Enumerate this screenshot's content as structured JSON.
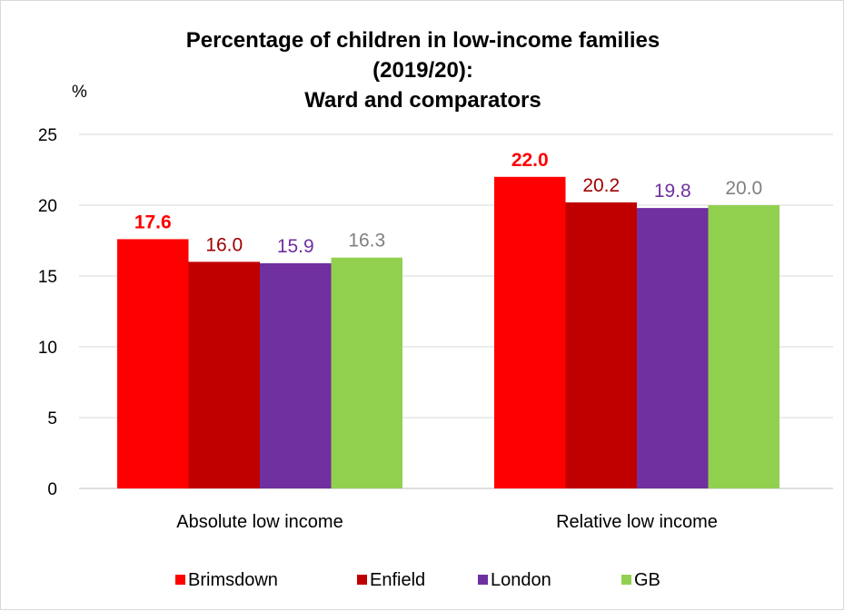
{
  "chart_data": {
    "type": "bar",
    "title_lines": [
      "Percentage of children in low-income families",
      "(2019/20):",
      "Ward and comparators"
    ],
    "ylabel": "%",
    "ylim": [
      0,
      25
    ],
    "yticks": [
      "0",
      "5",
      "10",
      "15",
      "20",
      "25"
    ],
    "grid": true,
    "legend_position": "bottom",
    "categories": [
      "Absolute low income",
      "Relative low income"
    ],
    "series": [
      {
        "name": "Brimsdown",
        "color": "#ff0000",
        "label_color": "#ff0000",
        "label_bold": true,
        "values": [
          17.6,
          22.0
        ],
        "labels": [
          "17.6",
          "22.0"
        ]
      },
      {
        "name": "Enfield",
        "color": "#c00000",
        "label_color": "#a00000",
        "label_bold": false,
        "values": [
          16.0,
          20.2
        ],
        "labels": [
          "16.0",
          "20.2"
        ]
      },
      {
        "name": "London",
        "color": "#7030a0",
        "label_color": "#7030a0",
        "label_bold": false,
        "values": [
          15.9,
          19.8
        ],
        "labels": [
          "15.9",
          "19.8"
        ]
      },
      {
        "name": "GB",
        "color": "#92d050",
        "label_color": "#808080",
        "label_bold": false,
        "values": [
          16.3,
          20.0
        ],
        "labels": [
          "16.3",
          "20.0"
        ]
      }
    ]
  }
}
